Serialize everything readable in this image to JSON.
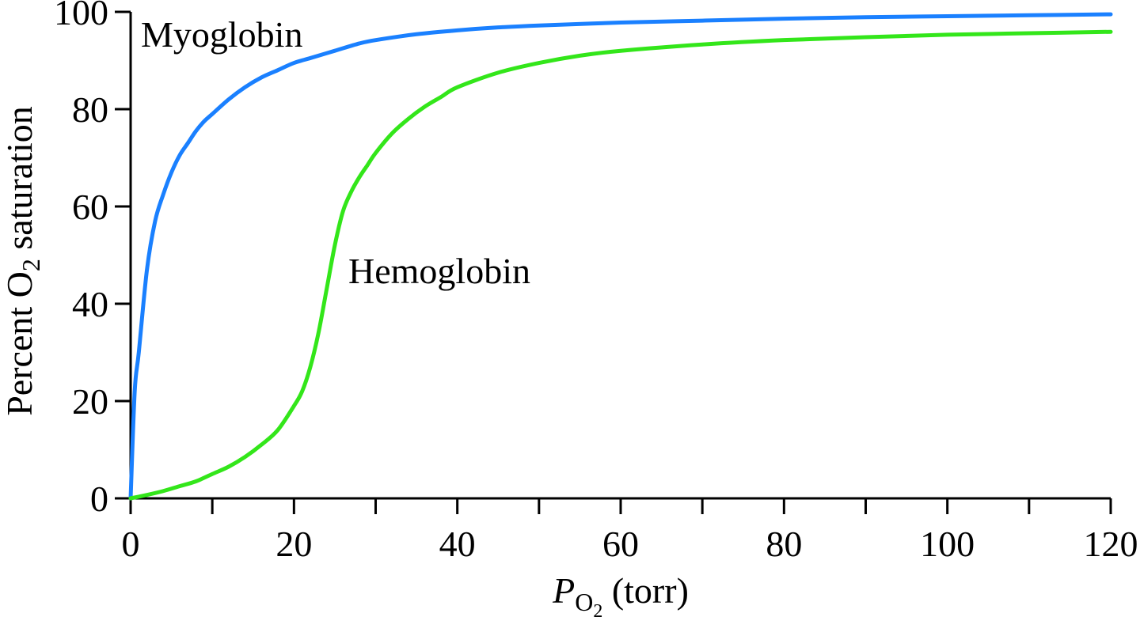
{
  "chart_data": {
    "type": "line",
    "title": "",
    "xlabel": {
      "symbol": "P",
      "subscript_main": "O",
      "subscript_index": "2",
      "unit": "(torr)"
    },
    "ylabel": {
      "prefix": "Percent O",
      "subscript": "2",
      "suffix": "saturation"
    },
    "xlim": [
      0,
      120
    ],
    "ylim": [
      0,
      100
    ],
    "x_ticks_major": [
      0,
      20,
      40,
      60,
      80,
      100,
      120
    ],
    "x_ticks_minor": [
      10,
      30,
      50,
      70,
      90,
      110
    ],
    "x_tick_labels": [
      "0",
      "20",
      "40",
      "60",
      "80",
      "100",
      "120"
    ],
    "y_ticks": [
      0,
      20,
      40,
      60,
      80,
      100
    ],
    "y_tick_labels": [
      "0",
      "20",
      "40",
      "60",
      "80",
      "100"
    ],
    "grid": false,
    "series": [
      {
        "name": "Myoglobin",
        "color": "#1a80ff",
        "x": [
          0,
          0.5,
          1,
          2,
          3,
          4,
          5,
          6,
          7,
          8,
          9,
          10,
          12,
          14,
          16,
          18,
          20,
          22,
          25,
          28,
          30,
          35,
          40,
          45,
          50,
          60,
          70,
          80,
          90,
          100,
          110,
          120
        ],
        "y": [
          0,
          22,
          30,
          47,
          57,
          62.5,
          67,
          70.5,
          73,
          75.5,
          77.5,
          79,
          82,
          84.5,
          86.5,
          88,
          89.5,
          90.5,
          92,
          93.5,
          94.2,
          95.4,
          96.2,
          96.8,
          97.2,
          97.8,
          98.2,
          98.6,
          98.9,
          99.1,
          99.3,
          99.5
        ]
      },
      {
        "name": "Hemoglobin",
        "color": "#33e61a",
        "x": [
          0,
          2,
          4,
          6,
          8,
          10,
          12,
          14,
          16,
          18,
          20,
          21,
          22,
          23,
          24,
          25,
          26,
          27,
          28,
          29,
          30,
          32,
          34,
          36,
          38,
          40,
          45,
          50,
          55,
          60,
          70,
          80,
          90,
          100,
          110,
          120
        ],
        "y": [
          0,
          0.7,
          1.5,
          2.5,
          3.5,
          5,
          6.5,
          8.5,
          11,
          14,
          19,
          22,
          27,
          34,
          43,
          52,
          59,
          63,
          66,
          68.5,
          71,
          75,
          78,
          80.5,
          82.5,
          84.5,
          87.5,
          89.5,
          91,
          92,
          93.3,
          94.2,
          94.8,
          95.3,
          95.6,
          95.9
        ]
      }
    ],
    "annotations": [
      {
        "text": "Myoglobin",
        "series": "Myoglobin"
      },
      {
        "text": "Hemoglobin",
        "series": "Hemoglobin"
      }
    ]
  }
}
